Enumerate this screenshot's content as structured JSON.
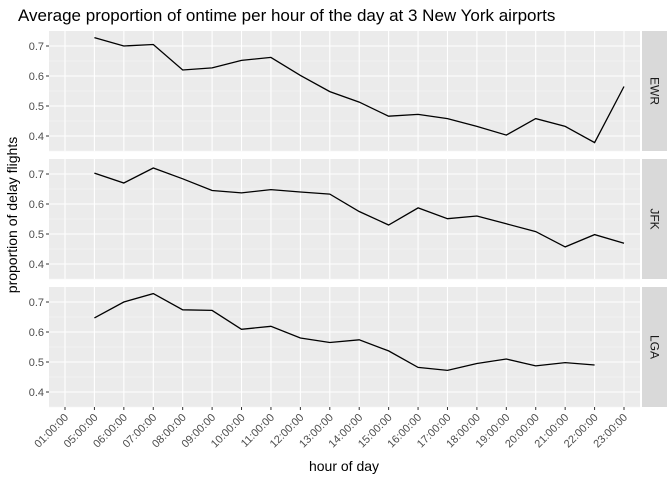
{
  "chart_data": {
    "type": "line",
    "title": "Average proportion of ontime per hour of the day at 3 New York airports",
    "xlabel": "hour of day",
    "ylabel": "proportion of delay flights",
    "ylim": [
      0.35,
      0.75
    ],
    "yticks": [
      "0.4",
      "0.5",
      "0.6",
      "0.7"
    ],
    "grid": true,
    "x": [
      "01:00:00",
      "05:00:00",
      "06:00:00",
      "07:00:00",
      "08:00:00",
      "09:00:00",
      "10:00:00",
      "11:00:00",
      "12:00:00",
      "13:00:00",
      "14:00:00",
      "15:00:00",
      "16:00:00",
      "17:00:00",
      "18:00:00",
      "19:00:00",
      "20:00:00",
      "21:00:00",
      "22:00:00",
      "23:00:00"
    ],
    "panels": [
      {
        "name": "EWR",
        "values": [
          null,
          0.728,
          0.7,
          0.705,
          0.62,
          0.627,
          0.652,
          0.662,
          0.602,
          0.548,
          0.513,
          0.466,
          0.472,
          0.458,
          0.432,
          0.403,
          0.458,
          0.432,
          0.378,
          0.565
        ]
      },
      {
        "name": "JFK",
        "values": [
          null,
          0.703,
          0.67,
          0.72,
          0.684,
          0.645,
          0.637,
          0.648,
          0.64,
          0.633,
          0.575,
          0.53,
          0.587,
          0.551,
          0.56,
          0.534,
          0.508,
          0.457,
          0.498,
          0.469
        ]
      },
      {
        "name": "LGA",
        "values": [
          null,
          0.647,
          0.7,
          0.728,
          0.674,
          0.672,
          0.609,
          0.619,
          0.58,
          0.565,
          0.574,
          0.537,
          0.482,
          0.472,
          0.495,
          0.51,
          0.487,
          0.498,
          0.49,
          null
        ]
      }
    ]
  }
}
